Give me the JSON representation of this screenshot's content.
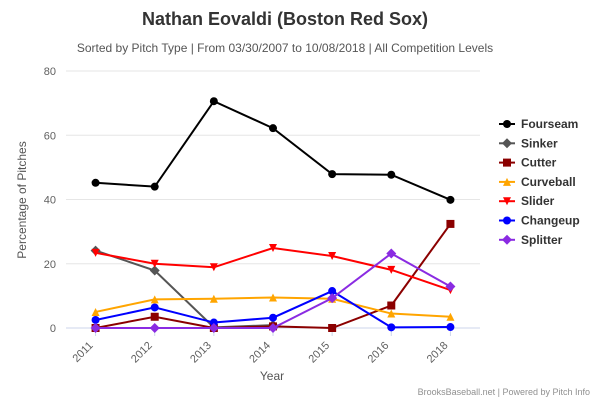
{
  "chart_data": {
    "type": "line",
    "title": "Nathan Eovaldi (Boston Red Sox)",
    "subtitle": "Sorted by Pitch Type | From 03/30/2007 to 10/08/2018 | All Competition Levels",
    "xlabel": "Year",
    "ylabel": "Percentage of Pitches",
    "categories": [
      "2011",
      "2012",
      "2013",
      "2014",
      "2015",
      "2016",
      "2018"
    ],
    "ylim": [
      0,
      80
    ],
    "yticks": [
      0,
      20,
      40,
      60,
      80
    ],
    "grid": true,
    "legend_position": "right",
    "credits": "BrooksBaseball.net | Powered by Pitch Info",
    "series": [
      {
        "name": "Fourseam",
        "color": "#000000",
        "marker": "circle",
        "values": [
          45.2,
          44,
          70.6,
          62.2,
          47.9,
          47.7,
          39.9
        ]
      },
      {
        "name": "Sinker",
        "color": "#555555",
        "marker": "diamond",
        "values": [
          24.1,
          17.9,
          0.2,
          0.9,
          null,
          null,
          null
        ]
      },
      {
        "name": "Cutter",
        "color": "#8b0000",
        "marker": "square",
        "values": [
          0,
          3.5,
          0,
          0.5,
          0,
          7,
          32.4
        ]
      },
      {
        "name": "Curveball",
        "color": "#ffa500",
        "marker": "triangle",
        "values": [
          5,
          8.9,
          9.1,
          9.5,
          9.1,
          4.5,
          3.5
        ]
      },
      {
        "name": "Slider",
        "color": "#ff0000",
        "marker": "triangle-down",
        "values": [
          23.4,
          20,
          18.9,
          24.9,
          22.4,
          18.1,
          11.8
        ]
      },
      {
        "name": "Changeup",
        "color": "#0000ff",
        "marker": "circle",
        "values": [
          2.5,
          6.4,
          1.7,
          3.2,
          11.5,
          0.2,
          0.3
        ]
      },
      {
        "name": "Splitter",
        "color": "#8a2be2",
        "marker": "diamond",
        "values": [
          0,
          0,
          0,
          0,
          9.3,
          23.2,
          12.9
        ]
      }
    ]
  }
}
